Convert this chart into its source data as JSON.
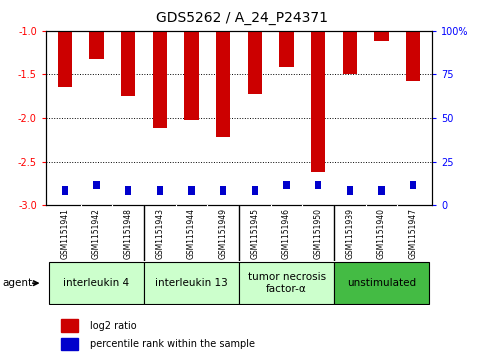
{
  "title": "GDS5262 / A_24_P24371",
  "samples": [
    "GSM1151941",
    "GSM1151942",
    "GSM1151948",
    "GSM1151943",
    "GSM1151944",
    "GSM1151949",
    "GSM1151945",
    "GSM1151946",
    "GSM1151950",
    "GSM1151939",
    "GSM1151940",
    "GSM1151947"
  ],
  "log2_ratio": [
    -1.65,
    -1.32,
    -1.75,
    -2.12,
    -2.02,
    -2.22,
    -1.73,
    -1.42,
    -2.62,
    -1.5,
    -1.12,
    -1.58
  ],
  "percentile_bottom": [
    -2.88,
    -2.82,
    -2.88,
    -2.88,
    -2.88,
    -2.88,
    -2.88,
    -2.82,
    -2.82,
    -2.88,
    -2.88,
    -2.82
  ],
  "percentile_height": [
    0.1,
    0.1,
    0.1,
    0.1,
    0.1,
    0.1,
    0.1,
    0.1,
    0.1,
    0.1,
    0.1,
    0.1
  ],
  "agents": [
    {
      "label": "interleukin 4",
      "start": 0,
      "end": 3,
      "color": "#ccffcc"
    },
    {
      "label": "interleukin 13",
      "start": 3,
      "end": 6,
      "color": "#ccffcc"
    },
    {
      "label": "tumor necrosis\nfactor-α",
      "start": 6,
      "end": 9,
      "color": "#ccffcc"
    },
    {
      "label": "unstimulated",
      "start": 9,
      "end": 12,
      "color": "#44bb44"
    }
  ],
  "group_boundaries": [
    3,
    6,
    9
  ],
  "ylim_left": [
    -3.0,
    -1.0
  ],
  "ylim_right": [
    0,
    100
  ],
  "yticks_left": [
    -3.0,
    -2.5,
    -2.0,
    -1.5,
    -1.0
  ],
  "yticks_right": [
    0,
    25,
    50,
    75,
    100
  ],
  "bar_color": "#cc0000",
  "percentile_color": "#0000cc",
  "bar_width": 0.45,
  "percentile_bar_width": 0.2,
  "background_color": "#ffffff",
  "tick_bg_color": "#d0d0d0",
  "agent_label_size": 7.5,
  "tick_label_size": 5.5,
  "title_size": 10,
  "legend_size": 7
}
